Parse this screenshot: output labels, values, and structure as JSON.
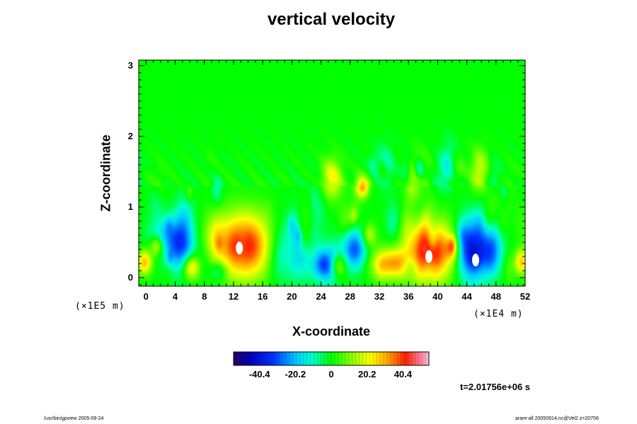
{
  "chart_data": {
    "type": "heatmap",
    "title": "vertical velocity",
    "xlabel": "X-coordinate",
    "ylabel": "Z-coordinate",
    "x_ticks": [
      "0",
      "4",
      "8",
      "12",
      "16",
      "20",
      "24",
      "28",
      "32",
      "36",
      "40",
      "44",
      "48",
      "52"
    ],
    "x_tick_values": [
      0,
      4,
      8,
      12,
      16,
      20,
      24,
      28,
      32,
      36,
      40,
      44,
      48,
      52
    ],
    "x_scale_note": "(×1E4 m)",
    "y_ticks": [
      "0",
      "1",
      "2",
      "3"
    ],
    "y_tick_values": [
      0,
      1,
      2,
      3
    ],
    "y_scale_note": "(×1E5 m)",
    "xlim": [
      -1,
      52
    ],
    "ylim": [
      -0.12,
      3.08
    ],
    "colorbar": {
      "ticks": [
        "-40.4",
        "-20.2",
        "0",
        "20.2",
        "40.4"
      ],
      "tick_values": [
        -40.4,
        -20.2,
        0,
        20.2,
        40.4
      ],
      "range": [
        -55,
        55
      ]
    },
    "field_features": [
      {
        "x": 13.5,
        "z": 0.45,
        "w": 45,
        "sx": 2.8,
        "sz": 0.32
      },
      {
        "x": 39,
        "z": 0.38,
        "w": 48,
        "sx": 2.2,
        "sz": 0.3
      },
      {
        "x": 44.6,
        "z": 0.4,
        "w": -40,
        "sx": 1.4,
        "sz": 0.3
      },
      {
        "x": 4.8,
        "z": 0.45,
        "w": -30,
        "sx": 1.3,
        "sz": 0.25
      },
      {
        "x": 28.6,
        "z": 0.4,
        "w": -30,
        "sx": 1.2,
        "sz": 0.2
      },
      {
        "x": 24.5,
        "z": 0.18,
        "w": -28,
        "sx": 1.1,
        "sz": 0.15
      },
      {
        "x": 33.8,
        "z": 0.2,
        "w": 30,
        "sx": 2.0,
        "sz": 0.15
      },
      {
        "x": 1.5,
        "z": 0.45,
        "w": 22,
        "sx": 0.6,
        "sz": 0.1
      },
      {
        "x": -0.2,
        "z": 0.22,
        "w": 30,
        "sx": 0.7,
        "sz": 0.12
      },
      {
        "x": 51.5,
        "z": 0.22,
        "w": 28,
        "sx": 0.6,
        "sz": 0.12
      },
      {
        "x": 6.2,
        "z": 0.15,
        "w": 28,
        "sx": 0.8,
        "sz": 0.12
      },
      {
        "x": 26.2,
        "z": 0.18,
        "w": 25,
        "sx": 0.8,
        "sz": 0.12
      },
      {
        "x": 47.5,
        "z": 0.4,
        "w": -25,
        "sx": 1.0,
        "sz": 0.25
      },
      {
        "x": 29.7,
        "z": 1.28,
        "w": 30,
        "sx": 0.6,
        "sz": 0.1
      },
      {
        "x": 25.5,
        "z": 1.4,
        "w": 22,
        "sx": 1.0,
        "sz": 0.2
      },
      {
        "x": 30.5,
        "z": 0.6,
        "w": 20,
        "sx": 0.7,
        "sz": 0.12
      },
      {
        "x": 42,
        "z": 0.42,
        "w": 22,
        "sx": 0.6,
        "sz": 0.12
      },
      {
        "x": 2.5,
        "z": 0.6,
        "w": -15,
        "sx": 1.5,
        "sz": 0.2
      },
      {
        "x": 18.5,
        "z": 0.4,
        "w": -14,
        "sx": 1.6,
        "sz": 0.3
      },
      {
        "x": 22,
        "z": 0.5,
        "w": -12,
        "sx": 1.5,
        "sz": 0.35
      },
      {
        "x": 36.2,
        "z": 0.18,
        "w": -18,
        "sx": 0.7,
        "sz": 0.12
      },
      {
        "x": 10,
        "z": 0.1,
        "w": -15,
        "sx": 0.8,
        "sz": 0.1
      }
    ],
    "extremes_white": [
      {
        "x": 12.8,
        "z": 0.42
      },
      {
        "x": 38.8,
        "z": 0.3
      },
      {
        "x": 45.2,
        "z": 0.25
      }
    ]
  },
  "time_label": "t=2.01756e+06 s",
  "footer_left": "/usr/bin/gpview 2005-09-24",
  "footer_right": "arare-all 20050914.nc@Vel2 z=20756"
}
